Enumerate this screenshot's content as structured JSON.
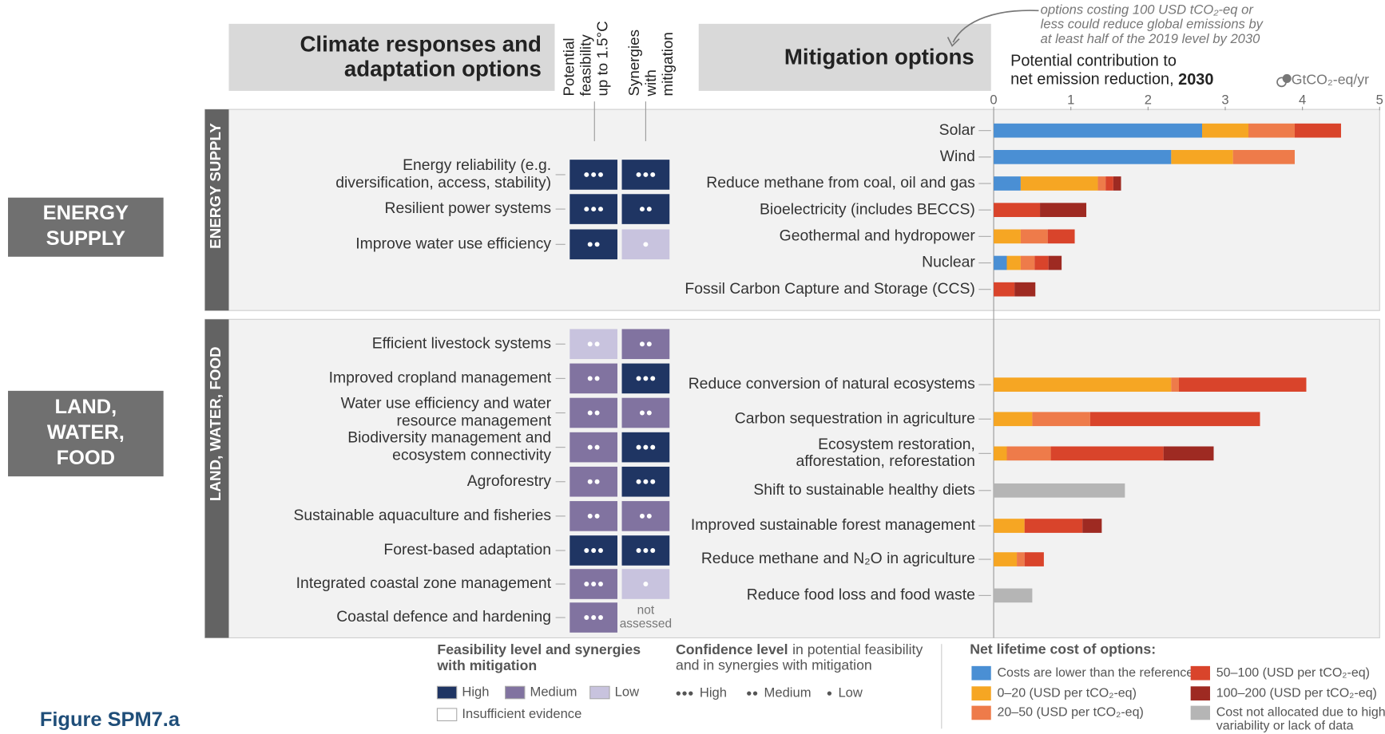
{
  "figure_label": "Figure SPM7.a",
  "sections": [
    {
      "box_label": "ENERGY\nSUPPLY",
      "side_label": "ENERGY SUPPLY"
    },
    {
      "box_label": "LAND,\nWATER,\nFOOD",
      "side_label": "LAND, WATER, FOOD"
    }
  ],
  "adaptation": {
    "title": "Climate responses and\nadaptation options",
    "columns": [
      "Potential\nfeasibility\nup to 1.5°C",
      "Synergies\nwith\nmitigation"
    ],
    "not_assessed": "not\nassessed",
    "rows": [
      {
        "label": "Energy reliability (e.g.\ndiversification, access, stability)",
        "feasibility": {
          "level": 0,
          "confidence": 3
        },
        "synergy": {
          "level": 0,
          "confidence": 3
        }
      },
      {
        "label": "Resilient power systems",
        "feasibility": {
          "level": 0,
          "confidence": 3
        },
        "synergy": {
          "level": 0,
          "confidence": 2
        }
      },
      {
        "label": "Improve water use efficiency",
        "feasibility": {
          "level": 0,
          "confidence": 2
        },
        "synergy": {
          "level": 2,
          "confidence": 1
        }
      },
      {
        "label": "Efficient livestock systems",
        "feasibility": {
          "level": 2,
          "confidence": 2
        },
        "synergy": {
          "level": 1,
          "confidence": 2
        }
      },
      {
        "label": "Improved cropland management",
        "feasibility": {
          "level": 1,
          "confidence": 2
        },
        "synergy": {
          "level": 0,
          "confidence": 3
        }
      },
      {
        "label": "Water use efficiency and water\nresource management",
        "feasibility": {
          "level": 1,
          "confidence": 2
        },
        "synergy": {
          "level": 1,
          "confidence": 2
        }
      },
      {
        "label": "Biodiversity management and\necosystem connectivity",
        "feasibility": {
          "level": 1,
          "confidence": 2
        },
        "synergy": {
          "level": 0,
          "confidence": 3
        }
      },
      {
        "label": "Agroforestry",
        "feasibility": {
          "level": 1,
          "confidence": 2
        },
        "synergy": {
          "level": 0,
          "confidence": 3
        }
      },
      {
        "label": "Sustainable aquaculture and fisheries",
        "feasibility": {
          "level": 1,
          "confidence": 2
        },
        "synergy": {
          "level": 1,
          "confidence": 2
        }
      },
      {
        "label": "Forest-based adaptation",
        "feasibility": {
          "level": 0,
          "confidence": 3
        },
        "synergy": {
          "level": 0,
          "confidence": 3
        }
      },
      {
        "label": "Integrated coastal zone management",
        "feasibility": {
          "level": 1,
          "confidence": 3
        },
        "synergy": {
          "level": 2,
          "confidence": 1
        }
      },
      {
        "label": "Coastal defence and hardening",
        "feasibility": {
          "level": 1,
          "confidence": 3
        },
        "synergy": null
      }
    ]
  },
  "legend_feasibility": {
    "title": "Feasibility level and synergies\nwith mitigation",
    "levels": [
      {
        "label": "High",
        "color": "#1f3563"
      },
      {
        "label": "Medium",
        "color": "#8173a0"
      },
      {
        "label": "Low",
        "color": "#c8c3de"
      },
      {
        "label": "Insufficient evidence",
        "color": "#ffffff"
      }
    ]
  },
  "legend_confidence": {
    "title": "Confidence level",
    "text": [
      "in potential feasibility",
      "and in synergies with mitigation"
    ],
    "levels": [
      {
        "label": "High",
        "dots": 3
      },
      {
        "label": "Medium",
        "dots": 2
      },
      {
        "label": "Low",
        "dots": 1
      }
    ]
  },
  "chart_data": {
    "type": "bar",
    "orientation": "horizontal",
    "stacked": true,
    "title": "Mitigation options",
    "axis_title": "Potential contribution to\nnet emission reduction,",
    "axis_title_year": "2030",
    "unit": "GtCO₂-eq/yr",
    "annotation": "options costing 100 USD tCO₂-eq or\nless could reduce global emissions by\nat least half of the 2019 level by 2030",
    "legend_title": "Net lifetime cost of options:",
    "categories": [
      "Solar",
      "Wind",
      "Reduce methane from coal, oil and gas",
      "Bioelectricity (includes BECCS)",
      "Geothermal and hydropower",
      "Nuclear",
      "Fossil Carbon Capture and Storage (CCS)",
      "Reduce conversion of natural ecosystems",
      "Carbon sequestration in agriculture",
      "Ecosystem restoration,\nafforestation, reforestation",
      "Shift to sustainable healthy diets",
      "Improved sustainable forest management",
      "Reduce methane and N₂O in agriculture",
      "Reduce food loss and food waste"
    ],
    "xlim": [
      0,
      5
    ],
    "xticks": [
      0,
      1,
      2,
      3,
      4,
      5
    ],
    "series": [
      {
        "name": "Costs are lower than the reference",
        "color": "#4a8fd4",
        "values": [
          2.7,
          2.3,
          0.35,
          0,
          0,
          0.17,
          0,
          0,
          0,
          0,
          0,
          0,
          0,
          0
        ]
      },
      {
        "name": "0–20 (USD per tCO₂-eq)",
        "color": "#f6a623",
        "values": [
          0.6,
          0.8,
          1.0,
          0,
          0.35,
          0.18,
          0,
          2.3,
          0.5,
          0.17,
          0,
          0.4,
          0.3,
          0
        ]
      },
      {
        "name": "20–50 (USD per tCO₂-eq)",
        "color": "#ee7b4a",
        "values": [
          0.6,
          0.8,
          0.1,
          0,
          0.35,
          0.18,
          0,
          0.1,
          0.75,
          0.57,
          0,
          0,
          0.1,
          0
        ]
      },
      {
        "name": "50–100 (USD per tCO₂-eq)",
        "color": "#d9442b",
        "values": [
          0.6,
          0,
          0.1,
          0.6,
          0.35,
          0.18,
          0.27,
          1.65,
          2.2,
          1.46,
          0,
          0.75,
          0.25,
          0
        ]
      },
      {
        "name": "100–200 (USD per tCO₂-eq)",
        "color": "#9e2a22",
        "values": [
          0,
          0,
          0.1,
          0.6,
          0,
          0.17,
          0.27,
          0,
          0,
          0.65,
          0,
          0.25,
          0,
          0
        ]
      },
      {
        "name": "Cost not allocated due to high\nvariability or lack of data",
        "color": "#b5b5b5",
        "values": [
          0,
          0,
          0,
          0,
          0,
          0,
          0,
          0,
          0,
          0,
          1.7,
          0,
          0,
          0.5
        ]
      }
    ]
  }
}
